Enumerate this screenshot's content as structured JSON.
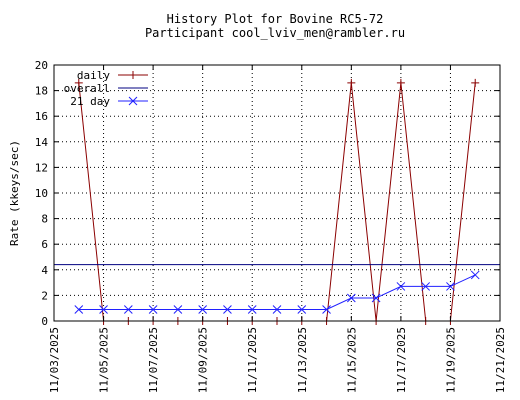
{
  "chart_data": {
    "type": "line",
    "title": "History Plot for Bovine RC5-72",
    "subtitle": "Participant cool_lviv_men@rambler.ru",
    "xlabel": "",
    "ylabel": "Rate (kkeys/sec)",
    "xlim": [
      "11/03/2025",
      "11/21/2025"
    ],
    "ylim": [
      0,
      20
    ],
    "x_ticks": [
      "11/03/2025",
      "11/05/2025",
      "11/07/2025",
      "11/09/2025",
      "11/11/2025",
      "11/13/2025",
      "11/15/2025",
      "11/17/2025",
      "11/19/2025",
      "11/21/2025"
    ],
    "y_ticks": [
      0,
      2,
      4,
      6,
      8,
      10,
      12,
      14,
      16,
      18,
      20
    ],
    "grid": true,
    "legend_position": "top-left",
    "series": [
      {
        "name": "daily",
        "color": "#8b0000",
        "marker": "plus",
        "points": [
          {
            "x": "11/04/2025",
            "y": 18.6
          },
          {
            "x": "11/05/2025",
            "y": 0
          },
          {
            "x": "11/06/2025",
            "y": 0
          },
          {
            "x": "11/07/2025",
            "y": 0
          },
          {
            "x": "11/08/2025",
            "y": 0
          },
          {
            "x": "11/09/2025",
            "y": 0
          },
          {
            "x": "11/10/2025",
            "y": 0
          },
          {
            "x": "11/11/2025",
            "y": 0
          },
          {
            "x": "11/12/2025",
            "y": 0
          },
          {
            "x": "11/13/2025",
            "y": 0
          },
          {
            "x": "11/14/2025",
            "y": 0
          },
          {
            "x": "11/15/2025",
            "y": 18.6
          },
          {
            "x": "11/16/2025",
            "y": 0
          },
          {
            "x": "11/17/2025",
            "y": 18.6
          },
          {
            "x": "11/18/2025",
            "y": 0
          },
          {
            "x": "11/19/2025",
            "y": 0
          },
          {
            "x": "11/20/2025",
            "y": 18.6
          }
        ]
      },
      {
        "name": "overall",
        "color": "#000080",
        "marker": "none",
        "constant": 4.4
      },
      {
        "name": "21 day",
        "color": "#2020ff",
        "marker": "cross",
        "points": [
          {
            "x": "11/04/2025",
            "y": 0.9
          },
          {
            "x": "11/05/2025",
            "y": 0.9
          },
          {
            "x": "11/06/2025",
            "y": 0.9
          },
          {
            "x": "11/07/2025",
            "y": 0.9
          },
          {
            "x": "11/08/2025",
            "y": 0.9
          },
          {
            "x": "11/09/2025",
            "y": 0.9
          },
          {
            "x": "11/10/2025",
            "y": 0.9
          },
          {
            "x": "11/11/2025",
            "y": 0.9
          },
          {
            "x": "11/12/2025",
            "y": 0.9
          },
          {
            "x": "11/13/2025",
            "y": 0.9
          },
          {
            "x": "11/14/2025",
            "y": 0.9
          },
          {
            "x": "11/15/2025",
            "y": 1.8
          },
          {
            "x": "11/16/2025",
            "y": 1.8
          },
          {
            "x": "11/17/2025",
            "y": 2.7
          },
          {
            "x": "11/18/2025",
            "y": 2.7
          },
          {
            "x": "11/19/2025",
            "y": 2.7
          },
          {
            "x": "11/20/2025",
            "y": 3.6
          }
        ]
      }
    ]
  }
}
